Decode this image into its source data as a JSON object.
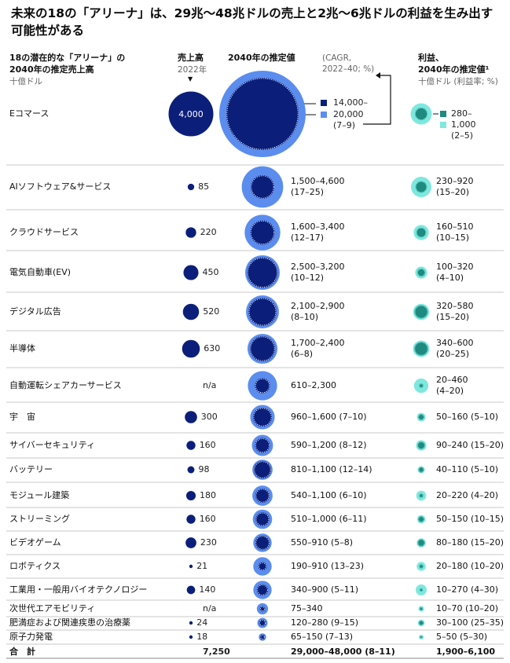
{
  "title": "未来の18の「アリーナ」は、29兆〜48兆ドルの売上と2兆〜6兆ドルの利益を生み出す可能性がある",
  "header": {
    "left_title_line1": "18の潜在的な「アリーナ」の",
    "left_title_line2": "2040年の推定売上高",
    "left_unit": "十億ドル",
    "rev_title": "売上高",
    "rev_year": "2022年",
    "proj_title": "2040年の推定値",
    "cagr_note_line1": "(CAGR,",
    "cagr_note_line2": "2022–40; %)",
    "profit_title_line1": "利益、",
    "profit_title_line2": "2040年の推定値¹",
    "profit_unit": "十億ドル (利益率; %)"
  },
  "colors": {
    "navy": "#0b1f7a",
    "light_blue": "#5b8def",
    "teal_dark": "#1f8a80",
    "teal_light": "#7ee8df"
  },
  "chart_data": {
    "type": "table",
    "columns": [
      "アリーナ",
      "売上高 2022年",
      "2040年の推定値 (CAGR, 2022–40; %)",
      "利益、2040年の推定値 (利益率; %)"
    ],
    "rows": [
      {
        "name": "Eコマース",
        "rev": 4000,
        "rev_label": "4,000",
        "proj_low": 14000,
        "proj_high": 20000,
        "proj_label": "",
        "prof_low": 280,
        "prof_high": 1000,
        "prof_label": ""
      },
      {
        "name": "AIソフトウェア&サービス",
        "rev": 85,
        "rev_label": "85",
        "proj_low": 1500,
        "proj_high": 4600,
        "proj_label": "1,500–4,600\n(17–25)",
        "prof_low": 230,
        "prof_high": 920,
        "prof_label": "230–920\n(15–20)"
      },
      {
        "name": "クラウドサービス",
        "rev": 220,
        "rev_label": "220",
        "proj_low": 1600,
        "proj_high": 3400,
        "proj_label": "1,600–3,400\n(12–17)",
        "prof_low": 160,
        "prof_high": 510,
        "prof_label": "160–510\n(10–15)"
      },
      {
        "name": "電気自動車(EV)",
        "rev": 450,
        "rev_label": "450",
        "proj_low": 2500,
        "proj_high": 3200,
        "proj_label": "2,500–3,200\n(10–12)",
        "prof_low": 100,
        "prof_high": 320,
        "prof_label": "100–320\n(4–10)"
      },
      {
        "name": "デジタル広告",
        "rev": 520,
        "rev_label": "520",
        "proj_low": 2100,
        "proj_high": 2900,
        "proj_label": "2,100–2,900\n(8–10)",
        "prof_low": 320,
        "prof_high": 580,
        "prof_label": "320–580\n(15–20)"
      },
      {
        "name": "半導体",
        "rev": 630,
        "rev_label": "630",
        "proj_low": 1700,
        "proj_high": 2400,
        "proj_label": "1,700–2,400\n(6–8)",
        "prof_low": 340,
        "prof_high": 600,
        "prof_label": "340–600\n(20–25)"
      },
      {
        "name": "自動運転シェアカーサービス",
        "rev": null,
        "rev_label": "n/a",
        "proj_low": 610,
        "proj_high": 2300,
        "proj_label": "610–2,300",
        "prof_low": 20,
        "prof_high": 460,
        "prof_label": "20–460\n(4–20)"
      },
      {
        "name": "宇　宙",
        "rev": 300,
        "rev_label": "300",
        "proj_low": 960,
        "proj_high": 1600,
        "proj_label": "960–1,600 (7–10)",
        "prof_low": 50,
        "prof_high": 160,
        "prof_label": "50–160 (5–10)"
      },
      {
        "name": "サイバーセキュリティ",
        "rev": 160,
        "rev_label": "160",
        "proj_low": 590,
        "proj_high": 1200,
        "proj_label": "590–1,200 (8–12)",
        "prof_low": 90,
        "prof_high": 240,
        "prof_label": "90–240 (15–20)"
      },
      {
        "name": "バッテリー",
        "rev": 98,
        "rev_label": "98",
        "proj_low": 810,
        "proj_high": 1100,
        "proj_label": "810–1,100 (12–14)",
        "prof_low": 40,
        "prof_high": 110,
        "prof_label": "40–110 (5–10)"
      },
      {
        "name": "モジュール建築",
        "rev": 180,
        "rev_label": "180",
        "proj_low": 540,
        "proj_high": 1100,
        "proj_label": "540–1,100 (6–10)",
        "prof_low": 20,
        "prof_high": 220,
        "prof_label": "20–220 (4–20)"
      },
      {
        "name": "ストリーミング",
        "rev": 160,
        "rev_label": "160",
        "proj_low": 510,
        "proj_high": 1000,
        "proj_label": "510–1,000 (6–11)",
        "prof_low": 50,
        "prof_high": 150,
        "prof_label": "50–150 (10–15)"
      },
      {
        "name": "ビデオゲーム",
        "rev": 230,
        "rev_label": "230",
        "proj_low": 550,
        "proj_high": 910,
        "proj_label": "550–910 (5–8)",
        "prof_low": 80,
        "prof_high": 180,
        "prof_label": "80–180 (15–20)"
      },
      {
        "name": "ロボティクス",
        "rev": 21,
        "rev_label": "21",
        "proj_low": 190,
        "proj_high": 910,
        "proj_label": "190–910 (13–23)",
        "prof_low": 20,
        "prof_high": 180,
        "prof_label": "20–180 (10–20)"
      },
      {
        "name": "工業用・一般用バイオテクノロジー",
        "rev": 140,
        "rev_label": "140",
        "proj_low": 340,
        "proj_high": 900,
        "proj_label": "340–900 (5–11)",
        "prof_low": 10,
        "prof_high": 270,
        "prof_label": "10–270 (4–30)"
      },
      {
        "name": "次世代エアモビリティ",
        "rev": null,
        "rev_label": "n/a",
        "proj_low": 75,
        "proj_high": 340,
        "proj_label": "75–340",
        "prof_low": 10,
        "prof_high": 70,
        "prof_label": "10–70 (10–20)"
      },
      {
        "name": "肥満症および関連疾患の治療薬",
        "rev": 24,
        "rev_label": "24",
        "proj_low": 120,
        "proj_high": 280,
        "proj_label": "120–280 (9–15)",
        "prof_low": 30,
        "prof_high": 100,
        "prof_label": "30–100 (25–35)"
      },
      {
        "name": "原子力発電",
        "rev": 18,
        "rev_label": "18",
        "proj_low": 65,
        "proj_high": 150,
        "proj_label": "65–150 (7–13)",
        "prof_low": 5,
        "prof_high": 50,
        "prof_label": "5–50 (5–30)"
      }
    ],
    "total": {
      "name": "合　計",
      "rev_label": "7,250",
      "proj_label": "29,000–48,000 (8–11)",
      "prof_label": "1,900–6,100"
    },
    "legend": {
      "proj_low": "14,000–",
      "proj_high": "20,000",
      "proj_cagr": "(7–9)",
      "prof_low": "280–",
      "prof_high": "1,000",
      "prof_margin": "(2–5)"
    }
  }
}
